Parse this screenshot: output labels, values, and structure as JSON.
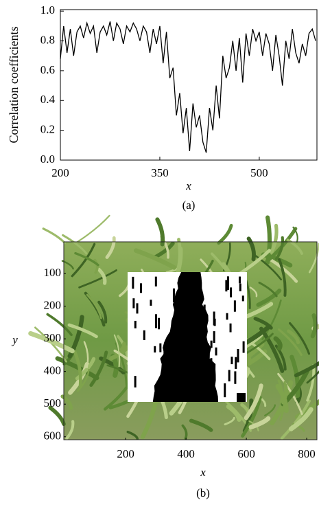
{
  "chart_data": [
    {
      "type": "line",
      "ylabel": "Correlation coefficients",
      "xlabel": "x",
      "caption": "(a)",
      "x": [
        200,
        205,
        210,
        215,
        220,
        225,
        230,
        235,
        240,
        245,
        250,
        255,
        260,
        265,
        270,
        275,
        280,
        285,
        290,
        295,
        300,
        305,
        310,
        315,
        320,
        325,
        330,
        335,
        340,
        345,
        350,
        355,
        360,
        365,
        370,
        375,
        380,
        385,
        390,
        395,
        400,
        405,
        410,
        415,
        420,
        425,
        430,
        435,
        440,
        445,
        450,
        455,
        460,
        465,
        470,
        475,
        480,
        485,
        490,
        495,
        500,
        505,
        510,
        515,
        520,
        525,
        530,
        535,
        540,
        545,
        550,
        555,
        560,
        565,
        570,
        575,
        580,
        585
      ],
      "values": [
        0.68,
        0.9,
        0.72,
        0.88,
        0.7,
        0.86,
        0.9,
        0.82,
        0.92,
        0.85,
        0.9,
        0.72,
        0.86,
        0.9,
        0.84,
        0.93,
        0.8,
        0.92,
        0.88,
        0.78,
        0.9,
        0.86,
        0.92,
        0.88,
        0.8,
        0.9,
        0.86,
        0.72,
        0.88,
        0.78,
        0.9,
        0.65,
        0.86,
        0.55,
        0.62,
        0.3,
        0.45,
        0.18,
        0.35,
        0.06,
        0.38,
        0.22,
        0.3,
        0.12,
        0.05,
        0.35,
        0.2,
        0.5,
        0.28,
        0.7,
        0.55,
        0.62,
        0.8,
        0.6,
        0.82,
        0.52,
        0.85,
        0.7,
        0.88,
        0.8,
        0.86,
        0.7,
        0.85,
        0.78,
        0.6,
        0.84,
        0.7,
        0.5,
        0.8,
        0.68,
        0.88,
        0.72,
        0.65,
        0.78,
        0.7,
        0.85,
        0.88,
        0.8
      ],
      "color": "#000000",
      "xlim": [
        200,
        587
      ],
      "xticks": [
        200,
        350,
        500
      ],
      "ylim": [
        0,
        1.01
      ],
      "yticks": [
        {
          "value": 0,
          "label": "0.0"
        },
        {
          "value": 0.2,
          "label": "0.2"
        },
        {
          "value": 0.4,
          "label": "0.4"
        },
        {
          "value": 0.6,
          "label": "0.6"
        },
        {
          "value": 0.8,
          "label": "0.8"
        },
        {
          "value": 1,
          "label": "1.0"
        }
      ]
    },
    {
      "type": "image",
      "xlabel": "x",
      "ylabel": "y",
      "caption": "(b)",
      "xlim": [
        -5,
        834
      ],
      "xticks": [
        200,
        400,
        600,
        800
      ],
      "ylim": [
        3,
        609
      ],
      "yticks": [
        100,
        200,
        300,
        400,
        500,
        600
      ]
    }
  ]
}
